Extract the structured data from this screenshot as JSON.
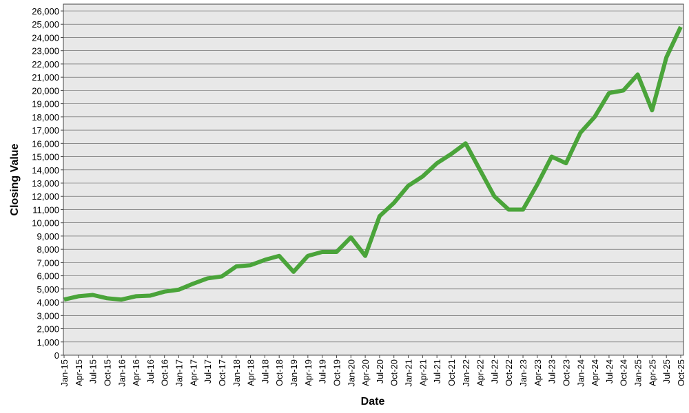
{
  "chart_data": {
    "type": "line",
    "x_label": "Date",
    "y_label": "Closing Value",
    "categories": [
      "Jan-15",
      "Apr-15",
      "Jul-15",
      "Oct-15",
      "Jan-16",
      "Apr-16",
      "Jul-16",
      "Oct-16",
      "Jan-17",
      "Apr-17",
      "Jul-17",
      "Oct-17",
      "Jan-18",
      "Apr-18",
      "Jul-18",
      "Oct-18",
      "Jan-19",
      "Apr-19",
      "Jul-19",
      "Oct-19",
      "Jan-20",
      "Apr-20",
      "Jul-20",
      "Oct-20",
      "Jan-21",
      "Apr-21",
      "Jul-21",
      "Oct-21",
      "Jan-22",
      "Apr-22",
      "Jul-22",
      "Oct-22",
      "Jan-23",
      "Apr-23",
      "Jul-23",
      "Oct-23",
      "Jan-24",
      "Apr-24",
      "Jul-24",
      "Oct-24",
      "Jan-25",
      "Apr-25",
      "Jul-25",
      "Oct-25"
    ],
    "values": [
      4200,
      4450,
      4550,
      4300,
      4200,
      4450,
      4500,
      4800,
      4950,
      5400,
      5800,
      5950,
      6700,
      6800,
      7200,
      7500,
      6300,
      7500,
      7800,
      7800,
      8900,
      7500,
      10500,
      11500,
      12800,
      13500,
      14500,
      15200,
      16000,
      14000,
      12000,
      11000,
      11000,
      12900,
      15000,
      14500,
      16800,
      18000,
      19800,
      20000,
      21200,
      18500,
      22500,
      24800
    ],
    "color": "#4aa43a",
    "ylim": [
      0,
      26000
    ],
    "yticks": [
      0,
      {
        "value": 1000,
        "label": "1,000"
      },
      {
        "value": 2000,
        "label": "2,000"
      },
      {
        "value": 3000,
        "label": "3,000"
      },
      {
        "value": 4000,
        "label": "4,000"
      },
      {
        "value": 5000,
        "label": "5,000"
      },
      {
        "value": 6000,
        "label": "6,000"
      },
      {
        "value": 7000,
        "label": "7,000"
      },
      {
        "value": 8000,
        "label": "8,000"
      },
      {
        "value": 9000,
        "label": "9,000"
      },
      {
        "value": 10000,
        "label": "10,000"
      },
      {
        "value": 11000,
        "label": "11,000"
      },
      {
        "value": 12000,
        "label": "12,000"
      },
      {
        "value": 13000,
        "label": "13,000"
      },
      {
        "value": 14000,
        "label": "14,000"
      },
      {
        "value": 15000,
        "label": "15,000"
      },
      {
        "value": 16000,
        "label": "16,000"
      },
      {
        "value": 17000,
        "label": "17,000"
      },
      {
        "value": 18000,
        "label": "18,000"
      },
      {
        "value": 19000,
        "label": "19,000"
      },
      {
        "value": 20000,
        "label": "20,000"
      },
      {
        "value": 21000,
        "label": "21,000"
      },
      {
        "value": 22000,
        "label": "22,000"
      },
      {
        "value": 23000,
        "label": "23,000"
      },
      {
        "value": 24000,
        "label": "24,000"
      },
      {
        "value": 25000,
        "label": "25,000"
      },
      {
        "value": 26000,
        "label": "26,000"
      }
    ],
    "grid": true
  }
}
